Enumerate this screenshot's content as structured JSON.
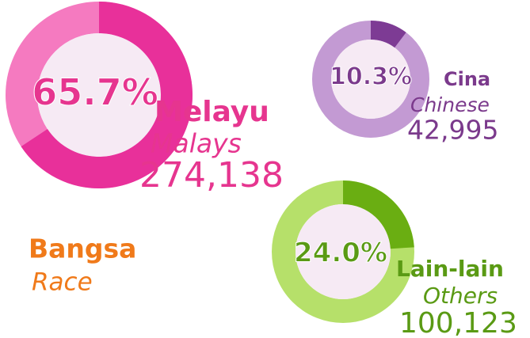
{
  "chart_data": {
    "type": "donut",
    "title": "Bangsa",
    "subtitle": "Race",
    "categories": [
      "Melayu",
      "Cina",
      "Lain-lain"
    ],
    "category_translations": [
      "Malays",
      "Chinese",
      "Others"
    ],
    "values": [
      65.7,
      10.3,
      24.0
    ],
    "value_labels": [
      "65.7%",
      "10.3%",
      "24.0%"
    ],
    "counts": [
      274138,
      42995,
      100123
    ],
    "count_labels": [
      "274,138",
      "42,995",
      "100,123"
    ],
    "colors": [
      "#e8309a",
      "#7d3b94",
      "#6aae12"
    ],
    "track_colors": [
      "#f57ac0",
      "#c39ad3",
      "#b6e06a"
    ],
    "text_colors": [
      "#e6358f",
      "#7b3a8c",
      "#5a9a14"
    ],
    "title_color": "#f07a1a"
  }
}
